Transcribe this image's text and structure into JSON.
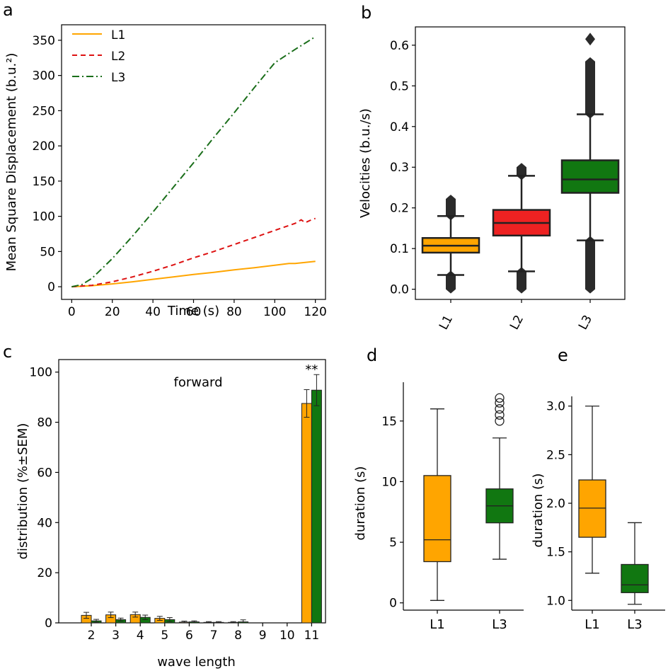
{
  "chart_data": [
    {
      "panel": "a",
      "type": "line",
      "xlabel": "Time (s)",
      "ylabel": "Mean Square Displacement (b.u.²)",
      "xlim": [
        -5,
        125
      ],
      "ylim": [
        -18,
        372
      ],
      "xticks": [
        0,
        20,
        40,
        60,
        80,
        100,
        120
      ],
      "yticks": [
        0,
        50,
        100,
        150,
        200,
        250,
        300,
        350
      ],
      "legend": "top-left",
      "series": [
        {
          "name": "L1",
          "color": "#ffa500",
          "dash": "",
          "x": [
            0,
            10,
            20,
            30,
            40,
            50,
            60,
            70,
            80,
            90,
            100,
            107,
            110,
            120
          ],
          "y": [
            0,
            1.5,
            4,
            7,
            10.5,
            14,
            17.5,
            20.5,
            24,
            27,
            30.5,
            33,
            33,
            36
          ]
        },
        {
          "name": "L2",
          "color": "#dd1111",
          "dash": "7,5",
          "x": [
            0,
            10,
            20,
            30,
            40,
            50,
            60,
            70,
            80,
            90,
            100,
            110,
            113,
            115,
            118,
            120
          ],
          "y": [
            0,
            2,
            7,
            14,
            22,
            31,
            41,
            50,
            60,
            70,
            80,
            90,
            95,
            91,
            95,
            97
          ]
        },
        {
          "name": "L3",
          "color": "#1a6e1a",
          "dash": "10,4,2,4",
          "x": [
            0,
            5,
            10,
            20,
            30,
            40,
            50,
            60,
            70,
            80,
            90,
            100,
            110,
            120
          ],
          "y": [
            0,
            3,
            12,
            40,
            72,
            106,
            141,
            176,
            212,
            247,
            283,
            318,
            337,
            355
          ]
        }
      ]
    },
    {
      "panel": "b",
      "type": "box",
      "ylabel": "Velocities (b.u./s)",
      "ylim": [
        -0.025,
        0.645
      ],
      "yticks": [
        "0.0",
        "0.1",
        "0.2",
        "0.3",
        "0.4",
        "0.5",
        "0.6"
      ],
      "categories": [
        "L1",
        "L2",
        "L3"
      ],
      "boxes": [
        {
          "label": "L1",
          "color": "#ffa500",
          "min": 0.035,
          "q1": 0.09,
          "median": 0.107,
          "q3": 0.126,
          "max": 0.18,
          "flier_low": [
            0.0,
            0.035
          ],
          "flier_high": [
            0.18,
            0.222
          ]
        },
        {
          "label": "L2",
          "color": "#ee2222",
          "min": 0.044,
          "q1": 0.132,
          "median": 0.163,
          "q3": 0.195,
          "max": 0.279,
          "flier_low": [
            0.0,
            0.044
          ],
          "flier_high": [
            0.279,
            0.3
          ]
        },
        {
          "label": "L3",
          "color": "#117711",
          "min": 0.12,
          "q1": 0.237,
          "median": 0.27,
          "q3": 0.317,
          "max": 0.43,
          "flier_low": [
            0.0,
            0.12
          ],
          "flier_high": [
            0.43,
            0.56
          ],
          "flier_isolated": [
            0.615
          ]
        }
      ]
    },
    {
      "panel": "c",
      "type": "bar",
      "title": "forward",
      "annotation": "**",
      "xlabel": "wave length",
      "ylabel": "distribution (%±SEM)",
      "ylim": [
        0,
        105
      ],
      "yticks": [
        0,
        20,
        40,
        60,
        80,
        100
      ],
      "categories": [
        "2",
        "3",
        "4",
        "5",
        "6",
        "7",
        "8",
        "9",
        "10",
        "11"
      ],
      "series": [
        {
          "name": "L1",
          "color": "#ffa500",
          "values": [
            3.0,
            3.2,
            3.3,
            1.8,
            0.3,
            0.2,
            0.2,
            0.0,
            0.0,
            87.5
          ],
          "errors": [
            1.2,
            1.1,
            1.0,
            0.8,
            0.4,
            0.3,
            0.3,
            0.0,
            0.0,
            5.5
          ]
        },
        {
          "name": "L3",
          "color": "#117711",
          "values": [
            0.8,
            1.3,
            2.2,
            1.3,
            0.4,
            0.2,
            0.4,
            0.0,
            0.0,
            92.8
          ],
          "errors": [
            0.6,
            0.6,
            0.9,
            0.8,
            0.4,
            0.3,
            0.8,
            0.0,
            0.0,
            6.2
          ]
        }
      ]
    },
    {
      "panel": "d",
      "type": "box",
      "ylabel": "duration (s)",
      "ylim": [
        -0.6,
        18.2
      ],
      "yticks": [
        0,
        5,
        10,
        15
      ],
      "categories": [
        "L1",
        "L3"
      ],
      "boxes": [
        {
          "label": "L1",
          "color": "#ffa500",
          "min": 0.2,
          "q1": 3.4,
          "median": 5.2,
          "q3": 10.5,
          "max": 16.0
        },
        {
          "label": "L3",
          "color": "#117711",
          "min": 3.6,
          "q1": 6.6,
          "median": 8.0,
          "q3": 9.4,
          "max": 13.6,
          "outliers": [
            15.0,
            15.5,
            16.0,
            16.5,
            16.9
          ]
        }
      ]
    },
    {
      "panel": "e",
      "type": "box",
      "ylabel": "duration (s)",
      "ylim": [
        0.9,
        3.1
      ],
      "yticks": [
        "1.0",
        "1.5",
        "2.0",
        "2.5",
        "3.0"
      ],
      "categories": [
        "L1",
        "L3"
      ],
      "boxes": [
        {
          "label": "L1",
          "color": "#ffa500",
          "min": 1.28,
          "q1": 1.65,
          "median": 1.95,
          "q3": 2.24,
          "max": 3.0
        },
        {
          "label": "L3",
          "color": "#117711",
          "min": 0.96,
          "q1": 1.08,
          "median": 1.16,
          "q3": 1.37,
          "max": 1.8
        }
      ]
    }
  ]
}
